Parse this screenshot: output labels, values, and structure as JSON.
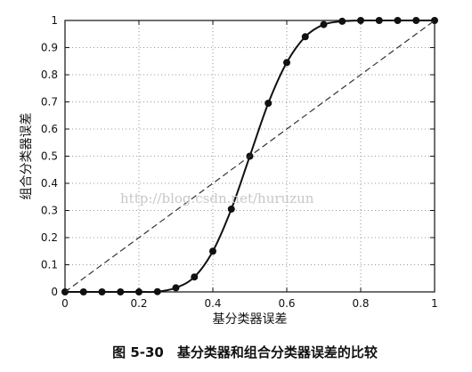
{
  "caption": "图 5-30　基分类器和组合分类器误差的比较",
  "watermark": "http://blog.csdn.net/huruzun",
  "chart_data": {
    "type": "line",
    "xlabel": "基分类器误差",
    "ylabel": "组合分类器误差",
    "xlim": [
      0,
      1
    ],
    "ylim": [
      0,
      1
    ],
    "xticks": [
      0,
      0.2,
      0.4,
      0.6,
      0.8,
      1
    ],
    "xtick_labels": [
      "0",
      "0.2",
      "0.4",
      "0.6",
      "0.8",
      "1"
    ],
    "yticks": [
      0,
      0.1,
      0.2,
      0.3,
      0.4,
      0.5,
      0.6,
      0.7,
      0.8,
      0.9,
      1
    ],
    "ytick_labels": [
      "0",
      "0.1",
      "0.2",
      "0.3",
      "0.4",
      "0.5",
      "0.6",
      "0.7",
      "0.8",
      "0.9",
      "1"
    ],
    "grid": true,
    "series": [
      {
        "style": "solid-with-markers",
        "color": "#111111",
        "x": [
          0,
          0.05,
          0.1,
          0.15,
          0.2,
          0.25,
          0.3,
          0.35,
          0.4,
          0.45,
          0.5,
          0.55,
          0.6,
          0.65,
          0.7,
          0.75,
          0.8,
          0.85,
          0.9,
          0.95,
          1
        ],
        "y": [
          0,
          0,
          0,
          0,
          0,
          0.001,
          0.015,
          0.055,
          0.15,
          0.305,
          0.5,
          0.695,
          0.845,
          0.94,
          0.985,
          0.997,
          1,
          1,
          1,
          1,
          1
        ]
      },
      {
        "style": "dashed",
        "color": "#333333",
        "x": [
          0,
          1
        ],
        "y": [
          0,
          1
        ]
      }
    ]
  }
}
